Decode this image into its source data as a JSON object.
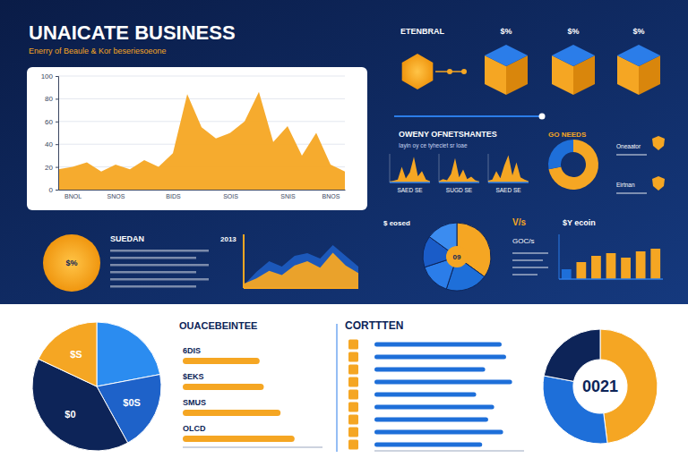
{
  "header": {
    "title": "UNAICATE BUSINESS",
    "subtitle": "Enerry of Beaule & Kor beseriesoeone"
  },
  "panels": {
    "cubes": {
      "title": "ETENBRAL",
      "labels": [
        "$%",
        "$%",
        "$%"
      ]
    },
    "badge": {
      "label": "$%",
      "title": "SUEDAN"
    }
  },
  "chart_data": [
    {
      "type": "area",
      "categories": [
        null,
        "BNOL",
        null,
        null,
        "SNOS",
        null,
        null,
        null,
        "BIDS",
        null,
        null,
        null,
        "SOIS",
        null,
        null,
        null,
        "SNIS",
        null,
        null,
        "BNOS",
        null
      ],
      "values": [
        18,
        20,
        24,
        16,
        22,
        18,
        26,
        20,
        32,
        84,
        55,
        45,
        50,
        60,
        86,
        42,
        56,
        30,
        50,
        22,
        16
      ],
      "color": "#f5a623",
      "ylim": [
        0,
        100
      ],
      "yticks": [
        0,
        20,
        40,
        60,
        80,
        100
      ],
      "grid": true
    },
    {
      "type": "area",
      "title": "OWENY OFNETSHANTES",
      "subtitle": "Iayin oy ce tyheciet sr loae",
      "series": [
        {
          "name": "SAED SE",
          "values": [
            4,
            6,
            10,
            55,
            14,
            35,
            90,
            22,
            40,
            10,
            5
          ]
        },
        {
          "name": "SUGD SE",
          "values": [
            5,
            12,
            8,
            30,
            85,
            18,
            45,
            12,
            20,
            8,
            4
          ]
        },
        {
          "name": "SAED SE",
          "values": [
            6,
            10,
            40,
            15,
            60,
            95,
            25,
            70,
            18,
            10,
            5
          ]
        }
      ],
      "color": "#f5a623",
      "ylim": [
        0,
        100
      ],
      "tick_labels": false
    },
    {
      "type": "donut",
      "title": "GO NEEDS",
      "categories": [
        null,
        null
      ],
      "values": [
        72,
        28
      ],
      "colors": [
        "#f5a623",
        "#1e6fd9"
      ],
      "annotations": [
        "Oneaator",
        "Eirtnan"
      ]
    },
    {
      "type": "area",
      "annotations": [
        "2013"
      ],
      "series": [
        {
          "color": "#1e5bbf",
          "values": [
            5,
            30,
            50,
            40,
            60,
            65,
            55,
            80,
            60,
            40
          ]
        },
        {
          "color": "#f5a623",
          "values": [
            8,
            18,
            32,
            24,
            42,
            50,
            38,
            66,
            42,
            28
          ]
        }
      ],
      "ylim": [
        0,
        100
      ],
      "tick_labels": false
    },
    {
      "type": "pie",
      "title": "$ eosed",
      "center_label": "09",
      "annotations": [
        "V/s",
        "GOC/s"
      ],
      "categories": [
        null,
        null,
        null,
        null,
        null
      ],
      "values": [
        35,
        20,
        15,
        15,
        15
      ],
      "colors": [
        "#f5a623",
        "#1e6fd9",
        "#2b7de9",
        "#1a5cc8",
        "#3b8cf0"
      ]
    },
    {
      "type": "bar",
      "title": "$Y ecoin",
      "categories": [
        null,
        null,
        null,
        null,
        null,
        null,
        null
      ],
      "values": [
        22,
        38,
        52,
        58,
        48,
        62,
        68
      ],
      "colors": [
        "#1e6fd9",
        "#f5a623",
        "#f5a623",
        "#f5a623",
        "#f5a623",
        "#f5a623",
        "#f5a623"
      ],
      "ylim": [
        0,
        100
      ],
      "tick_labels": false
    },
    {
      "type": "pie",
      "categories": [
        null,
        "$0S",
        "$0",
        "$S"
      ],
      "values": [
        22,
        20,
        40,
        18
      ],
      "colors": [
        "#2b8cf0",
        "#1e62c9",
        "#0d2458",
        "#f5a623"
      ]
    },
    {
      "type": "bar",
      "orientation": "horizontal",
      "title": "OUACEBEINTEE",
      "categories": [
        "6DIS",
        "$EKS",
        "SMUS",
        "OLCD"
      ],
      "values": [
        55,
        58,
        70,
        80
      ],
      "color": "#f5a623",
      "xlim": [
        0,
        100
      ],
      "tick_labels": false
    },
    {
      "type": "bar",
      "orientation": "horizontal",
      "title": "CORTTTEN",
      "categories": [
        null,
        null,
        null,
        null,
        null,
        null,
        null,
        null,
        null
      ],
      "values": [
        85,
        88,
        74,
        92,
        68,
        80,
        76,
        86,
        72
      ],
      "color": "#1e6fd9",
      "xlim": [
        0,
        100
      ],
      "tick_labels": false
    },
    {
      "type": "donut",
      "center_label": "0021",
      "categories": [
        null,
        null,
        null
      ],
      "values": [
        48,
        30,
        22
      ],
      "colors": [
        "#f5a623",
        "#1e6fd9",
        "#0d2458"
      ]
    }
  ]
}
